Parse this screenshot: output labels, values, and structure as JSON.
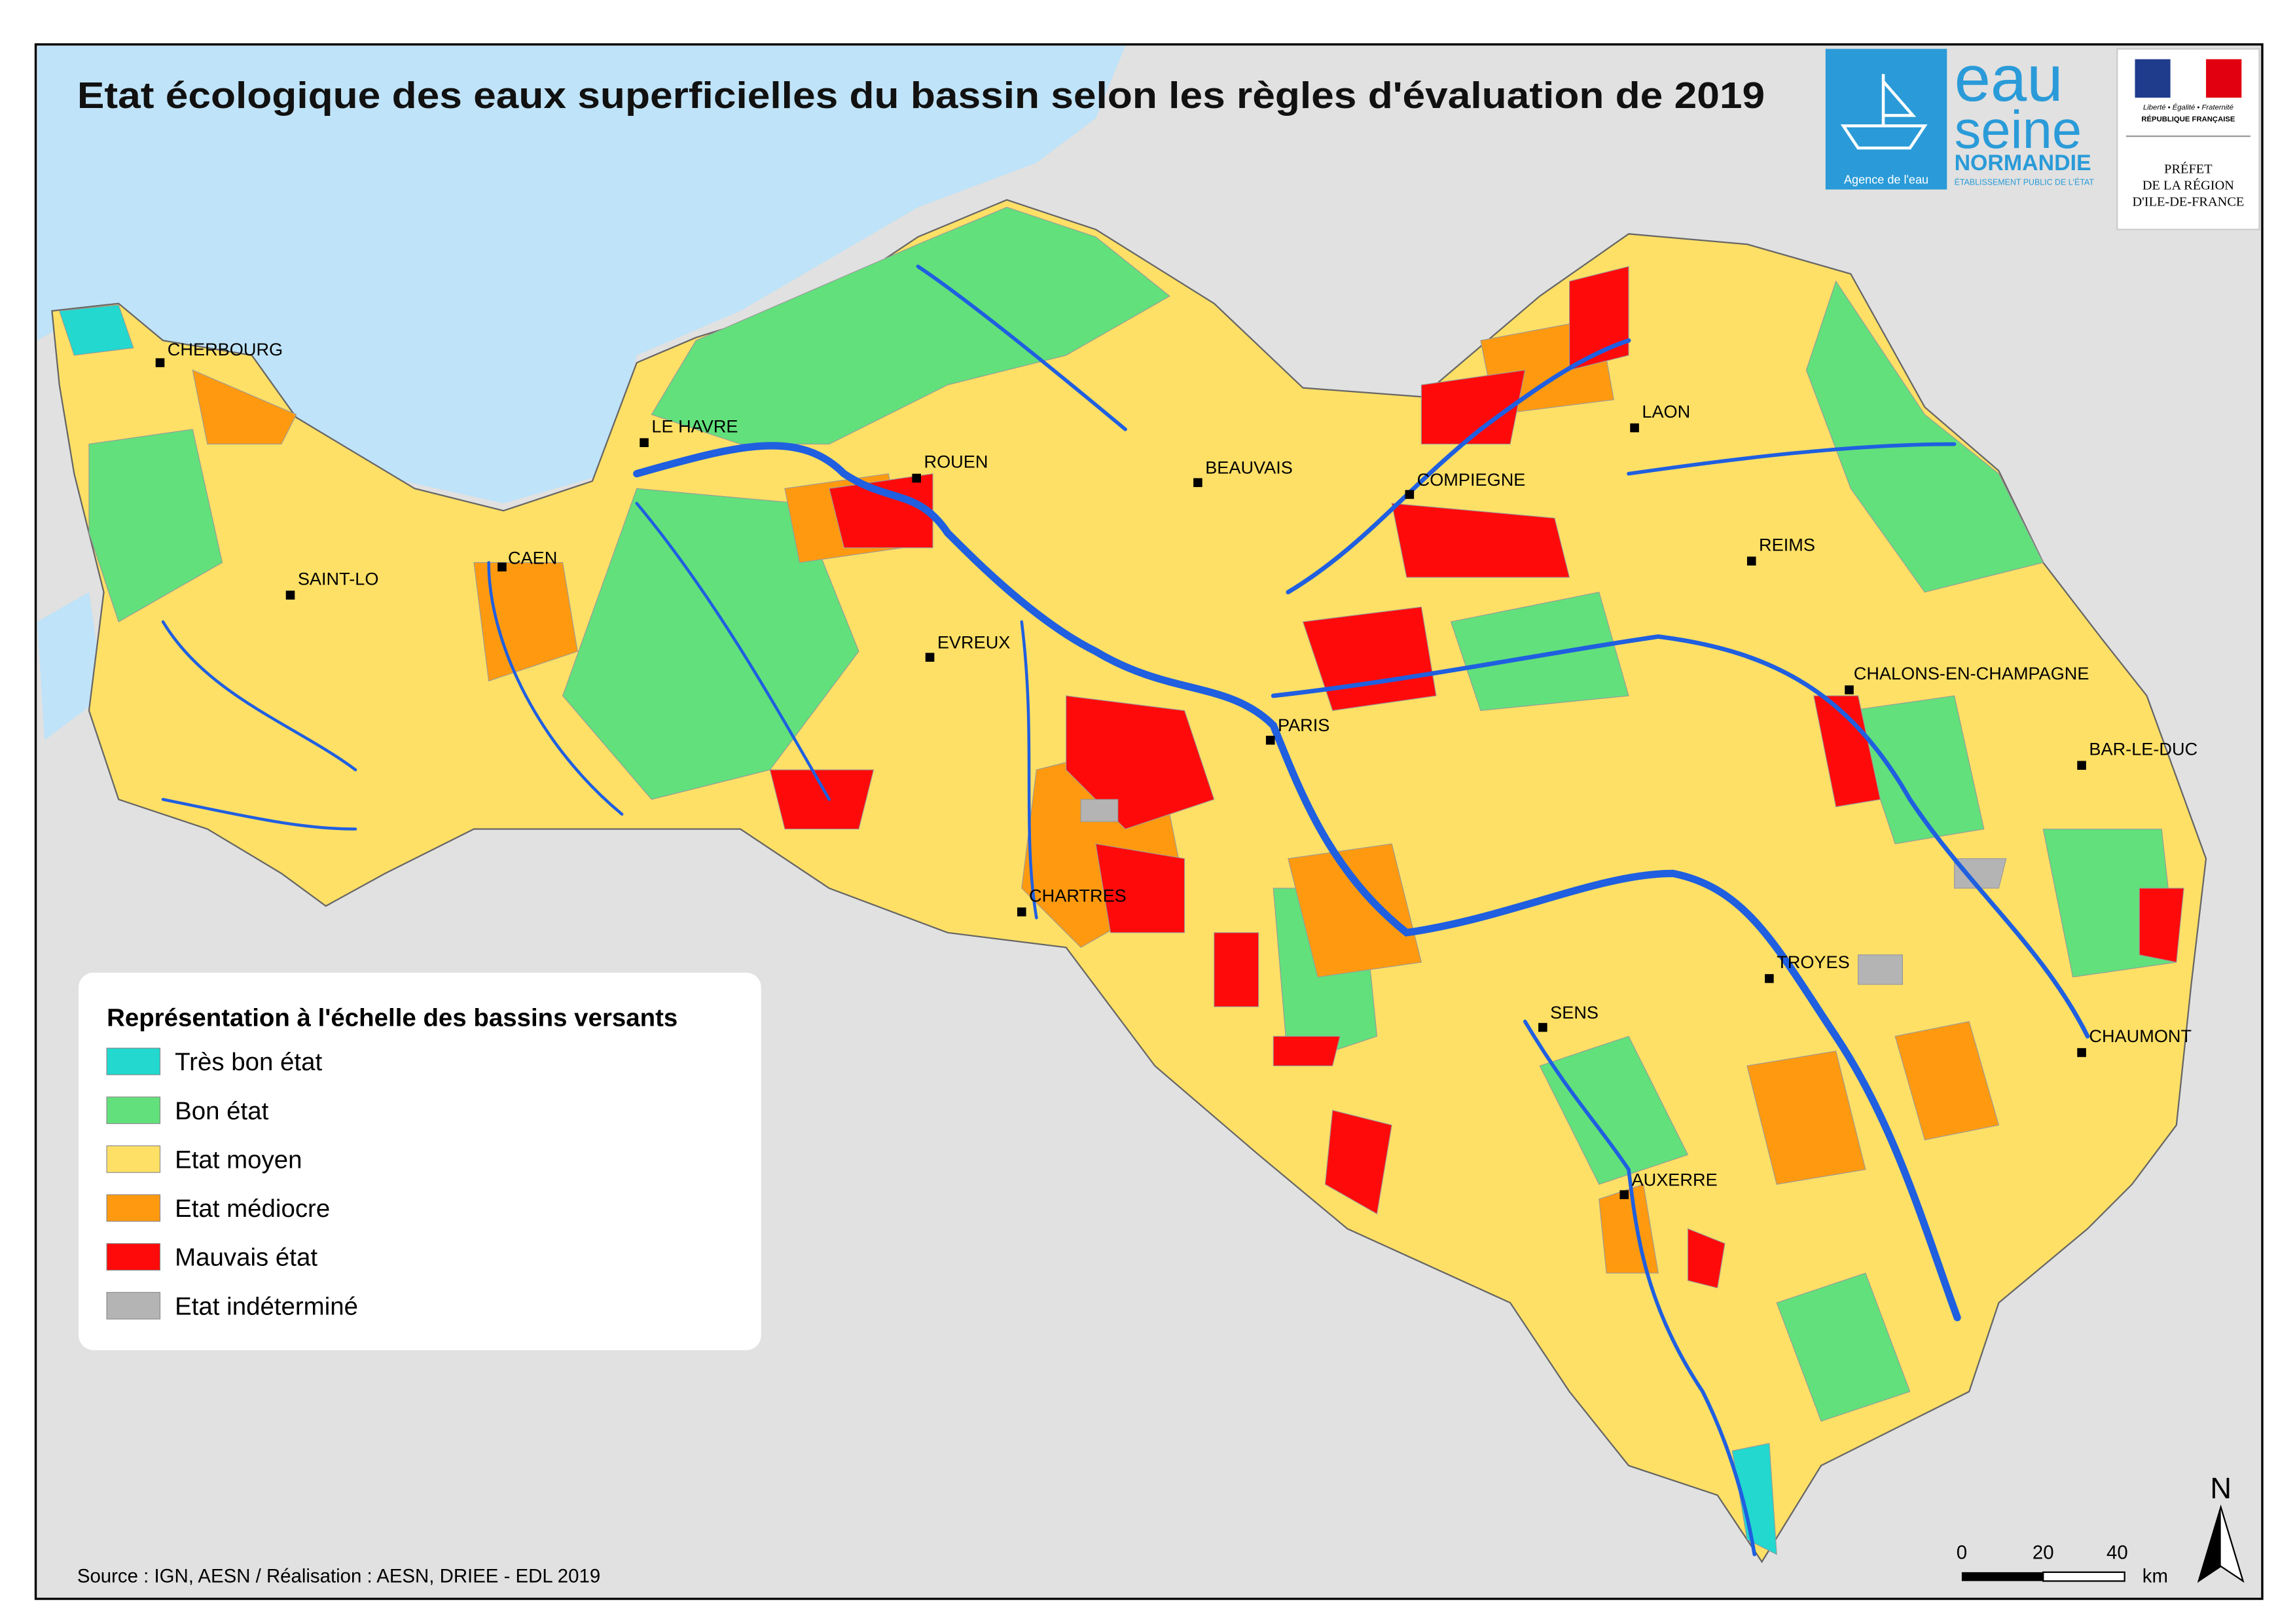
{
  "header": {
    "title": "Etat écologique des eaux superficielles du bassin selon les règles d'évaluation de 2019"
  },
  "logos": {
    "agence": {
      "line1": "eau",
      "line2": "seine",
      "line3": "NORMANDIE",
      "sub1": "Agence de l'eau",
      "sub2": "ÉTABLISSEMENT PUBLIC DE L'ÉTAT"
    },
    "prefet": {
      "motto": "Liberté • Égalité • Fraternité",
      "republic": "RÉPUBLIQUE FRANÇAISE",
      "lines": [
        "PRÉFET",
        "DE LA RÉGION",
        "D'ILE-DE-FRANCE"
      ]
    }
  },
  "cities": [
    "CHERBOURG",
    "LE HAVRE",
    "ROUEN",
    "BEAUVAIS",
    "COMPIEGNE",
    "LAON",
    "SAINT-LO",
    "CAEN",
    "REIMS",
    "EVREUX",
    "CHALONS-EN-CHAMPAGNE",
    "PARIS",
    "BAR-LE-DUC",
    "CHARTRES",
    "TROYES",
    "SENS",
    "CHAUMONT",
    "AUXERRE"
  ],
  "legend": {
    "title": "Représentation à l'échelle des bassins versants",
    "items": [
      {
        "label": "Très bon état",
        "color": "#22d8cf"
      },
      {
        "label": "Bon état",
        "color": "#62e07c"
      },
      {
        "label": "Etat moyen",
        "color": "#ffe066"
      },
      {
        "label": "Etat médiocre",
        "color": "#ff9a10"
      },
      {
        "label": "Mauvais état",
        "color": "#ff0a0a"
      },
      {
        "label": "Etat indéterminé",
        "color": "#b4b4b4"
      }
    ]
  },
  "scale": {
    "ticks": [
      0,
      20,
      40
    ],
    "unit": "km"
  },
  "north": "N",
  "source": "Source : IGN, AESN / Réalisation : AESN, DRIEE - EDL 2019"
}
